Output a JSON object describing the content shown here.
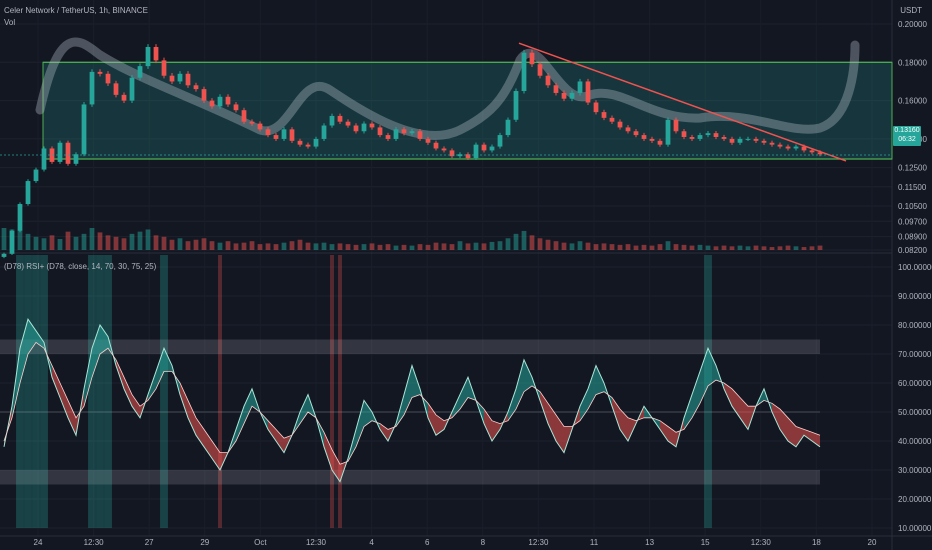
{
  "header": {
    "symbol_line": "Celer Network / TetherUS, 1h, BINANCE",
    "volume_label": "Vol",
    "unit_label": "USDT",
    "rsi_label": "(D78) RSI+ (D78, close, 14, 70, 30, 75, 25)"
  },
  "price_badge": {
    "price": "0.13160",
    "countdown": "06:32"
  },
  "colors": {
    "background": "#131722",
    "up": "#26a69a",
    "down": "#ef5350",
    "range_box": "#4caf50",
    "trendline": "#ef5350"
  },
  "chart_data": [
    {
      "type": "candlestick",
      "title": "Celer Network / TetherUS, 1h, BINANCE",
      "x_tick_labels": [
        "24",
        "12:30",
        "27",
        "29",
        "Oct",
        "12:30",
        "4",
        "6",
        "8",
        "12:30",
        "11",
        "13",
        "15",
        "12:30",
        "18",
        "20"
      ],
      "y_tick_labels": [
        "0.20000",
        "0.18000",
        "0.16000",
        "0.14000",
        "0.12500",
        "0.11500",
        "0.10500",
        "0.09700",
        "0.08900",
        "0.08200"
      ],
      "ylim": [
        0.082,
        0.2
      ],
      "last_price": 0.1316,
      "range_box": {
        "top": 0.18,
        "bottom": 0.1295
      },
      "trendline": {
        "start": 0.19,
        "end": 0.1285
      },
      "close": [
        0.08,
        0.092,
        0.106,
        0.118,
        0.124,
        0.135,
        0.128,
        0.138,
        0.127,
        0.132,
        0.158,
        0.175,
        0.174,
        0.169,
        0.163,
        0.16,
        0.172,
        0.178,
        0.188,
        0.181,
        0.173,
        0.17,
        0.174,
        0.168,
        0.166,
        0.16,
        0.157,
        0.162,
        0.158,
        0.155,
        0.149,
        0.148,
        0.145,
        0.142,
        0.14,
        0.145,
        0.139,
        0.137,
        0.136,
        0.14,
        0.147,
        0.152,
        0.149,
        0.147,
        0.144,
        0.148,
        0.146,
        0.142,
        0.14,
        0.145,
        0.143,
        0.144,
        0.14,
        0.138,
        0.135,
        0.134,
        0.131,
        0.132,
        0.13,
        0.137,
        0.134,
        0.136,
        0.142,
        0.15,
        0.165,
        0.185,
        0.179,
        0.173,
        0.168,
        0.164,
        0.161,
        0.164,
        0.17,
        0.159,
        0.154,
        0.151,
        0.149,
        0.146,
        0.144,
        0.142,
        0.14,
        0.139,
        0.137,
        0.15,
        0.144,
        0.141,
        0.14,
        0.142,
        0.143,
        0.141,
        0.14,
        0.138,
        0.14,
        0.14,
        0.139,
        0.138,
        0.137,
        0.136,
        0.135,
        0.136,
        0.134,
        0.133,
        0.132
      ],
      "volume": [
        30,
        28,
        26,
        22,
        18,
        16,
        20,
        15,
        25,
        18,
        22,
        30,
        24,
        20,
        18,
        16,
        22,
        25,
        28,
        20,
        18,
        14,
        16,
        12,
        14,
        16,
        12,
        10,
        12,
        9,
        10,
        12,
        8,
        9,
        8,
        10,
        12,
        14,
        10,
        9,
        10,
        8,
        9,
        8,
        7,
        8,
        9,
        7,
        8,
        6,
        7,
        6,
        8,
        7,
        10,
        9,
        8,
        12,
        9,
        10,
        9,
        11,
        12,
        16,
        22,
        26,
        20,
        16,
        14,
        12,
        10,
        9,
        12,
        10,
        8,
        9,
        8,
        7,
        8,
        6,
        7,
        6,
        8,
        12,
        8,
        7,
        6,
        7,
        6,
        5,
        6,
        5,
        6,
        5,
        6,
        5,
        4,
        5,
        6,
        5,
        4,
        5,
        6
      ]
    },
    {
      "type": "line",
      "title": "(D78) RSI+ (D78, close, 14, 70, 30, 75, 25)",
      "y_tick_labels": [
        "100.00000",
        "90.00000",
        "80.00000",
        "70.00000",
        "60.00000",
        "50.00000",
        "40.00000",
        "30.00000",
        "20.00000",
        "10.00000"
      ],
      "ylim": [
        10,
        100
      ],
      "bands": {
        "upper": [
          70,
          75
        ],
        "lower": [
          25,
          30
        ],
        "mid": 50
      },
      "series": [
        {
          "values": [
            38,
            52,
            72,
            82,
            78,
            74,
            62,
            55,
            48,
            42,
            58,
            72,
            80,
            76,
            66,
            58,
            52,
            48,
            56,
            64,
            72,
            66,
            56,
            48,
            42,
            38,
            34,
            30,
            36,
            44,
            52,
            58,
            50,
            44,
            40,
            36,
            42,
            50,
            56,
            48,
            38,
            30,
            26,
            34,
            44,
            54,
            50,
            44,
            40,
            46,
            56,
            66,
            58,
            48,
            42,
            44,
            50,
            56,
            62,
            54,
            46,
            40,
            44,
            50,
            58,
            68,
            62,
            54,
            46,
            40,
            36,
            44,
            52,
            58,
            66,
            60,
            52,
            44,
            40,
            46,
            52,
            48,
            44,
            40,
            38,
            48,
            56,
            64,
            72,
            66,
            58,
            52,
            48,
            44,
            52,
            58,
            50,
            44,
            40,
            38,
            42,
            40,
            38
          ]
        },
        {
          "values": [
            40,
            48,
            60,
            70,
            74,
            72,
            66,
            60,
            54,
            48,
            52,
            62,
            70,
            72,
            68,
            62,
            56,
            52,
            54,
            58,
            64,
            64,
            60,
            54,
            48,
            44,
            40,
            36,
            36,
            40,
            46,
            52,
            50,
            47,
            44,
            41,
            42,
            46,
            50,
            48,
            43,
            37,
            32,
            33,
            38,
            45,
            47,
            46,
            44,
            45,
            49,
            55,
            56,
            53,
            49,
            47,
            48,
            51,
            55,
            54,
            51,
            47,
            46,
            47,
            51,
            57,
            59,
            57,
            53,
            49,
            45,
            45,
            47,
            51,
            56,
            57,
            55,
            51,
            48,
            47,
            48,
            48,
            47,
            45,
            43,
            44,
            48,
            53,
            59,
            61,
            60,
            58,
            55,
            52,
            52,
            54,
            53,
            51,
            48,
            45,
            44,
            43,
            42
          ]
        }
      ]
    }
  ]
}
